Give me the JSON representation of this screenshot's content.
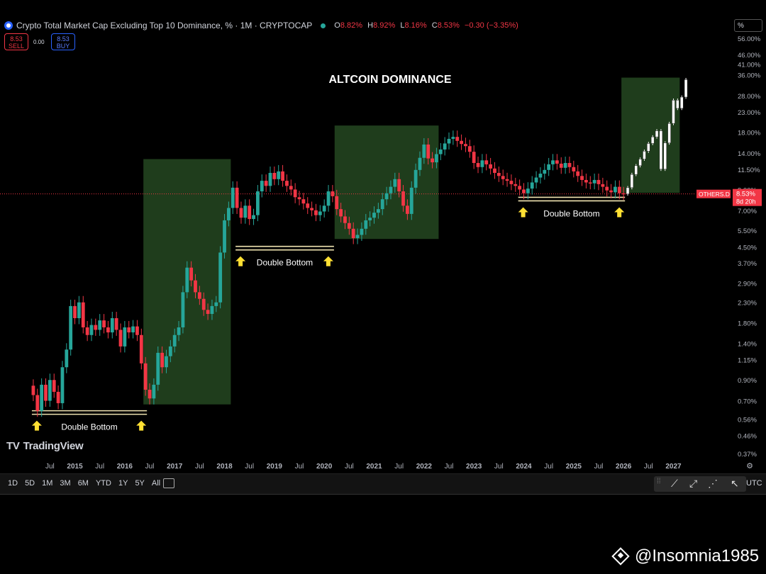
{
  "header": {
    "symbol_title": "Crypto Total Market Cap Excluding Top 10 Dominance, % · 1M · CRYPTOCAP",
    "open_label": "O",
    "open_value": "8.82%",
    "high_label": "H",
    "high_value": "8.92%",
    "low_label": "L",
    "low_value": "8.16%",
    "close_label": "C",
    "close_value": "8.53%",
    "change_value": "−0.30 (−3.35%)"
  },
  "trade": {
    "sell_price": "8.53",
    "sell_label": "SELL",
    "spread": "0.00",
    "buy_price": "8.53",
    "buy_label": "BUY"
  },
  "scale_button": "%",
  "brand": "TradingView",
  "toolbar": {
    "ranges": [
      "1D",
      "5D",
      "1M",
      "3M",
      "6M",
      "YTD",
      "1Y",
      "5Y",
      "All"
    ],
    "timezone": "UTC"
  },
  "price_tag": {
    "symbol": "OTHERS.D",
    "price": "8.53%",
    "countdown": "8d 20h"
  },
  "watermark": "@Insomnia1985",
  "colors": {
    "up": "#26a69a",
    "down": "#f23645",
    "box": "#1f3d1c",
    "support": "#efe3b0",
    "arrow": "#ffe033"
  },
  "chart_data": {
    "type": "candlestick",
    "title": "ALTCOIN DOMINANCE",
    "y_scale": "log",
    "y_unit": "%",
    "y_ticks": [
      "56.00%",
      "46.00%",
      "41.00%",
      "36.00%",
      "28.00%",
      "23.00%",
      "18.00%",
      "14.00%",
      "11.50%",
      "9.00%",
      "7.00%",
      "5.50%",
      "4.50%",
      "3.70%",
      "2.90%",
      "2.30%",
      "1.80%",
      "1.40%",
      "1.15%",
      "0.90%",
      "0.70%",
      "0.56%",
      "0.46%",
      "0.37%"
    ],
    "x_ticks": [
      "Jul",
      "2015",
      "Jul",
      "2016",
      "Jul",
      "2017",
      "Jul",
      "2018",
      "Jul",
      "2019",
      "Jul",
      "2020",
      "Jul",
      "2021",
      "Jul",
      "2022",
      "Jul",
      "2023",
      "Jul",
      "2024",
      "Jul",
      "2025",
      "Jul",
      "2026",
      "Jul",
      "2027"
    ],
    "x_range": [
      "2014-03",
      "2027-04"
    ],
    "current_price": 8.53,
    "close_series": [
      {
        "date": "2014-03",
        "close": 0.75
      },
      {
        "date": "2014-04",
        "close": 0.62
      },
      {
        "date": "2014-05",
        "close": 0.85
      },
      {
        "date": "2014-06",
        "close": 0.7
      },
      {
        "date": "2014-07",
        "close": 0.9
      },
      {
        "date": "2014-08",
        "close": 0.78
      },
      {
        "date": "2014-09",
        "close": 0.68
      },
      {
        "date": "2014-10",
        "close": 1.05
      },
      {
        "date": "2014-11",
        "close": 1.3
      },
      {
        "date": "2014-12",
        "close": 2.2
      },
      {
        "date": "2015-01",
        "close": 1.9
      },
      {
        "date": "2015-02",
        "close": 2.3
      },
      {
        "date": "2015-03",
        "close": 1.7
      },
      {
        "date": "2015-04",
        "close": 1.55
      },
      {
        "date": "2015-05",
        "close": 1.75
      },
      {
        "date": "2015-06",
        "close": 1.65
      },
      {
        "date": "2015-07",
        "close": 1.85
      },
      {
        "date": "2015-08",
        "close": 1.7
      },
      {
        "date": "2015-09",
        "close": 1.6
      },
      {
        "date": "2015-10",
        "close": 1.9
      },
      {
        "date": "2015-11",
        "close": 1.65
      },
      {
        "date": "2015-12",
        "close": 1.35
      },
      {
        "date": "2016-01",
        "close": 1.7
      },
      {
        "date": "2016-02",
        "close": 1.6
      },
      {
        "date": "2016-03",
        "close": 1.72
      },
      {
        "date": "2016-04",
        "close": 1.55
      },
      {
        "date": "2016-05",
        "close": 1.1
      },
      {
        "date": "2016-06",
        "close": 0.8
      },
      {
        "date": "2016-07",
        "close": 0.72
      },
      {
        "date": "2016-08",
        "close": 0.85
      },
      {
        "date": "2016-09",
        "close": 1.25
      },
      {
        "date": "2016-10",
        "close": 1.05
      },
      {
        "date": "2016-11",
        "close": 1.2
      },
      {
        "date": "2016-12",
        "close": 1.35
      },
      {
        "date": "2017-01",
        "close": 1.55
      },
      {
        "date": "2017-02",
        "close": 1.7
      },
      {
        "date": "2017-03",
        "close": 2.6
      },
      {
        "date": "2017-04",
        "close": 3.5
      },
      {
        "date": "2017-05",
        "close": 3.0
      },
      {
        "date": "2017-06",
        "close": 2.6
      },
      {
        "date": "2017-07",
        "close": 2.4
      },
      {
        "date": "2017-08",
        "close": 2.1
      },
      {
        "date": "2017-09",
        "close": 2.0
      },
      {
        "date": "2017-10",
        "close": 2.2
      },
      {
        "date": "2017-11",
        "close": 2.3
      },
      {
        "date": "2017-12",
        "close": 4.2
      },
      {
        "date": "2018-01",
        "close": 6.2
      },
      {
        "date": "2018-02",
        "close": 7.2
      },
      {
        "date": "2018-03",
        "close": 9.2
      },
      {
        "date": "2018-04",
        "close": 7.2
      },
      {
        "date": "2018-05",
        "close": 6.4
      },
      {
        "date": "2018-06",
        "close": 7.4
      },
      {
        "date": "2018-07",
        "close": 6.3
      },
      {
        "date": "2018-08",
        "close": 6.6
      },
      {
        "date": "2018-09",
        "close": 8.8
      },
      {
        "date": "2018-10",
        "close": 10.0
      },
      {
        "date": "2018-11",
        "close": 9.4
      },
      {
        "date": "2018-12",
        "close": 11.0
      },
      {
        "date": "2019-01",
        "close": 10.2
      },
      {
        "date": "2019-02",
        "close": 11.2
      },
      {
        "date": "2019-03",
        "close": 10.0
      },
      {
        "date": "2019-04",
        "close": 9.4
      },
      {
        "date": "2019-05",
        "close": 9.0
      },
      {
        "date": "2019-06",
        "close": 8.2
      },
      {
        "date": "2019-07",
        "close": 8.0
      },
      {
        "date": "2019-08",
        "close": 7.6
      },
      {
        "date": "2019-09",
        "close": 7.2
      },
      {
        "date": "2019-10",
        "close": 7.0
      },
      {
        "date": "2019-11",
        "close": 6.6
      },
      {
        "date": "2019-12",
        "close": 6.9
      },
      {
        "date": "2020-01",
        "close": 7.4
      },
      {
        "date": "2020-02",
        "close": 8.8
      },
      {
        "date": "2020-03",
        "close": 8.3
      },
      {
        "date": "2020-04",
        "close": 7.1
      },
      {
        "date": "2020-05",
        "close": 6.5
      },
      {
        "date": "2020-06",
        "close": 6.0
      },
      {
        "date": "2020-07",
        "close": 5.6
      },
      {
        "date": "2020-08",
        "close": 5.0
      },
      {
        "date": "2020-09",
        "close": 5.2
      },
      {
        "date": "2020-10",
        "close": 5.6
      },
      {
        "date": "2020-11",
        "close": 6.2
      },
      {
        "date": "2020-12",
        "close": 6.4
      },
      {
        "date": "2021-01",
        "close": 6.8
      },
      {
        "date": "2021-02",
        "close": 7.1
      },
      {
        "date": "2021-03",
        "close": 8.0
      },
      {
        "date": "2021-04",
        "close": 8.6
      },
      {
        "date": "2021-05",
        "close": 9.3
      },
      {
        "date": "2021-06",
        "close": 10.2
      },
      {
        "date": "2021-07",
        "close": 8.8
      },
      {
        "date": "2021-08",
        "close": 7.4
      },
      {
        "date": "2021-09",
        "close": 6.7
      },
      {
        "date": "2021-10",
        "close": 9.2
      },
      {
        "date": "2021-11",
        "close": 11.4
      },
      {
        "date": "2021-12",
        "close": 13.2
      },
      {
        "date": "2022-01",
        "close": 15.5
      },
      {
        "date": "2022-02",
        "close": 13.1
      },
      {
        "date": "2022-03",
        "close": 12.5
      },
      {
        "date": "2022-04",
        "close": 13.8
      },
      {
        "date": "2022-05",
        "close": 14.6
      },
      {
        "date": "2022-06",
        "close": 15.7
      },
      {
        "date": "2022-07",
        "close": 16.6
      },
      {
        "date": "2022-08",
        "close": 17.0
      },
      {
        "date": "2022-09",
        "close": 16.2
      },
      {
        "date": "2022-10",
        "close": 15.6
      },
      {
        "date": "2022-11",
        "close": 15.2
      },
      {
        "date": "2022-12",
        "close": 14.2
      },
      {
        "date": "2023-01",
        "close": 12.4
      },
      {
        "date": "2023-02",
        "close": 11.8
      },
      {
        "date": "2023-03",
        "close": 12.8
      },
      {
        "date": "2023-04",
        "close": 12.2
      },
      {
        "date": "2023-05",
        "close": 11.6
      },
      {
        "date": "2023-06",
        "close": 11.0
      },
      {
        "date": "2023-07",
        "close": 10.6
      },
      {
        "date": "2023-08",
        "close": 10.2
      },
      {
        "date": "2023-09",
        "close": 10.0
      },
      {
        "date": "2023-10",
        "close": 9.6
      },
      {
        "date": "2023-11",
        "close": 9.4
      },
      {
        "date": "2023-12",
        "close": 9.0
      },
      {
        "date": "2024-01",
        "close": 8.6
      },
      {
        "date": "2024-02",
        "close": 9.1
      },
      {
        "date": "2024-03",
        "close": 9.8
      },
      {
        "date": "2024-04",
        "close": 10.4
      },
      {
        "date": "2024-05",
        "close": 10.9
      },
      {
        "date": "2024-06",
        "close": 11.4
      },
      {
        "date": "2024-07",
        "close": 12.2
      },
      {
        "date": "2024-08",
        "close": 12.8
      },
      {
        "date": "2024-09",
        "close": 12.3
      },
      {
        "date": "2024-10",
        "close": 11.7
      },
      {
        "date": "2024-11",
        "close": 12.4
      },
      {
        "date": "2024-12",
        "close": 11.8
      },
      {
        "date": "2025-01",
        "close": 11.2
      },
      {
        "date": "2025-02",
        "close": 10.6
      },
      {
        "date": "2025-03",
        "close": 10.1
      },
      {
        "date": "2025-04",
        "close": 9.8
      },
      {
        "date": "2025-05",
        "close": 9.7
      },
      {
        "date": "2025-06",
        "close": 10.1
      },
      {
        "date": "2025-07",
        "close": 9.6
      },
      {
        "date": "2025-08",
        "close": 9.3
      },
      {
        "date": "2025-09",
        "close": 8.9
      },
      {
        "date": "2025-10",
        "close": 8.7
      },
      {
        "date": "2025-11",
        "close": 9.3
      },
      {
        "date": "2025-12",
        "close": 8.6
      },
      {
        "date": "2026-01",
        "close": 8.53
      }
    ],
    "projection": [
      {
        "date": "2026-02",
        "close": 9.2
      },
      {
        "date": "2026-03",
        "close": 10.8
      },
      {
        "date": "2026-04",
        "close": 12.0
      },
      {
        "date": "2026-05",
        "close": 13.0
      },
      {
        "date": "2026-06",
        "close": 14.3
      },
      {
        "date": "2026-07",
        "close": 15.7
      },
      {
        "date": "2026-08",
        "close": 17.0
      },
      {
        "date": "2026-09",
        "close": 18.3
      },
      {
        "date": "2026-10",
        "close": 11.5
      },
      {
        "date": "2026-11",
        "close": 15.8
      },
      {
        "date": "2026-12",
        "close": 20.0
      },
      {
        "date": "2027-01",
        "close": 26.5
      },
      {
        "date": "2027-02",
        "close": 24.0
      },
      {
        "date": "2027-03",
        "close": 27.5
      },
      {
        "date": "2027-04",
        "close": 34.0
      }
    ],
    "annotations": [
      {
        "type": "rally_box",
        "from": "2016-06",
        "to": "2018-02",
        "y_low": 0.67,
        "y_high": 13.0
      },
      {
        "type": "rally_box",
        "from": "2020-04",
        "to": "2022-04",
        "y_low": 4.95,
        "y_high": 19.5
      },
      {
        "type": "rally_box",
        "from": "2026-01",
        "to": "2027-02",
        "y_low": 8.65,
        "y_high": 34.8
      },
      {
        "type": "double_bottom",
        "text": "Double Bottom",
        "from": "2014-03",
        "to": "2016-06",
        "y": 0.61
      },
      {
        "type": "double_bottom",
        "text": "Double Bottom",
        "from": "2018-04",
        "to": "2020-03",
        "y": 4.45
      },
      {
        "type": "double_bottom",
        "text": "Double Bottom",
        "from": "2023-12",
        "to": "2026-01",
        "y": 8.05
      }
    ]
  }
}
